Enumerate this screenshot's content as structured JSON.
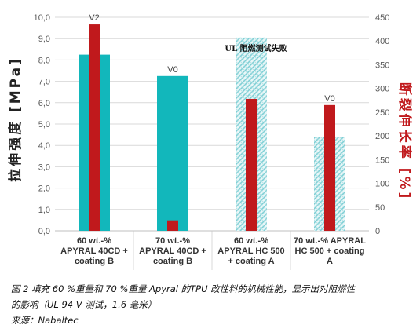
{
  "colors": {
    "tensile": "#12b7bb",
    "tensile_hatched": "#a8dde2",
    "elongation": "#c0191c",
    "axis_left_title": "#222222",
    "axis_right_title": "#c0191c",
    "tick_text": "#5a5a5a",
    "grid": "#d9d9d9"
  },
  "chart_data": {
    "type": "bar",
    "categories": [
      [
        "60 wt.-%",
        "APYRAL 40CD +",
        "coating B"
      ],
      [
        "70 wt.-%",
        "APYRAL 40CD +",
        "coating B"
      ],
      [
        "60 wt.-%",
        "APYRAL HC 500",
        "+ coating A"
      ],
      [
        "70 wt.-% APYRAL",
        "HC 500 + coating",
        "A"
      ]
    ],
    "series": [
      {
        "name": "",
        "axis": "left",
        "values": [
          8.25,
          7.25,
          9.05,
          4.4
        ],
        "hatched": [
          false,
          false,
          true,
          true
        ]
      },
      {
        "name": "",
        "axis": "right",
        "values": [
          435,
          22,
          278,
          265
        ]
      }
    ],
    "ylabel_left": "拉伸强度 [MPa]",
    "ylabel_right": "断裂伸长率 [%]",
    "ylim_left": [
      0,
      10
    ],
    "ylim_right": [
      0,
      450
    ],
    "yticks_left": [
      "0,0",
      "1,0",
      "2,0",
      "3,0",
      "4,0",
      "5,0",
      "6,0",
      "7,0",
      "8,0",
      "9,0",
      "10,0"
    ],
    "yticks_right": [
      "0",
      "50",
      "100",
      "150",
      "200",
      "250",
      "300",
      "350",
      "400",
      "450"
    ],
    "bar_labels": [
      "V2",
      "V0",
      "UL 阻燃测试失败",
      "V0"
    ],
    "grid": true,
    "legend": "none"
  },
  "caption": {
    "line1": "图 2 填充 60 %重量和 70 %重量 Apyral 的TPU 改性料的机械性能，显示出对阻燃性",
    "line2": "的影响（UL 94 V 测试，1.6 毫米）",
    "line3": "来源：Nabaltec"
  }
}
